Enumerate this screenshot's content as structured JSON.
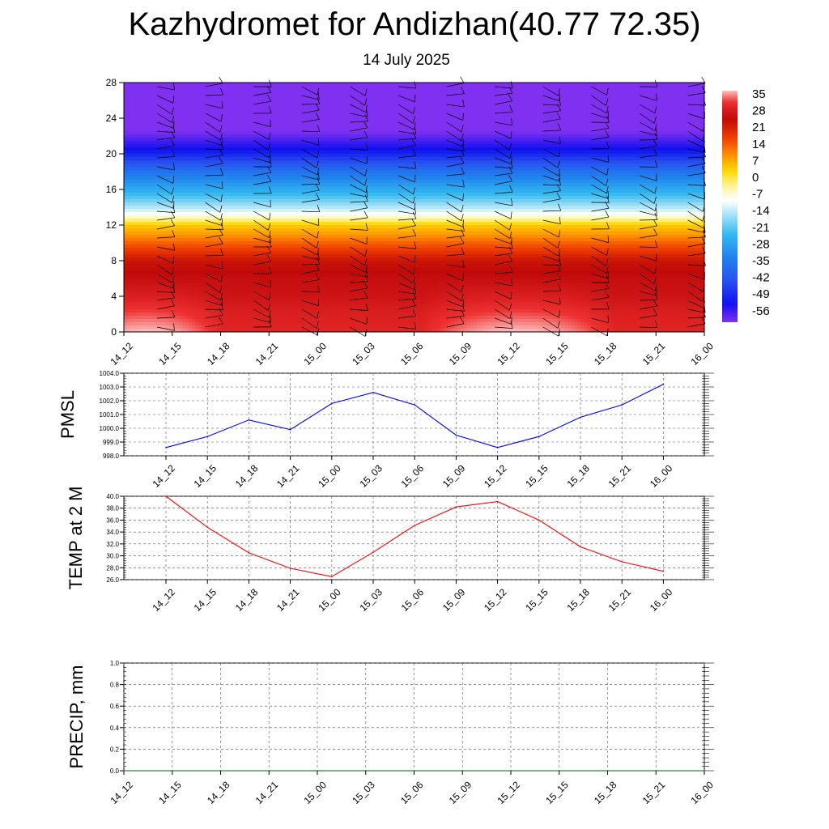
{
  "title": "Kazhydromet for Andizhan(40.77 72.35)",
  "subtitle": "14 July 2025",
  "colors": {
    "pmsl_line": "#0000ff",
    "temp_line": "#ff0000",
    "precip_line": "#006400"
  },
  "chart_data": [
    {
      "type": "heatmap",
      "name": "temperature-wind cross-section",
      "x_ticks": [
        "14_12",
        "14_15",
        "14_18",
        "14_21",
        "15_00",
        "15_03",
        "15_06",
        "15_09",
        "15_12",
        "15_15",
        "15_18",
        "15_21",
        "16_00"
      ],
      "y_ticks": [
        0,
        4,
        8,
        12,
        16,
        20,
        24,
        28
      ],
      "ylim": [
        0,
        28
      ],
      "colorbar": {
        "labels": [
          35,
          28,
          21,
          14,
          7,
          0,
          -7,
          -14,
          -21,
          -28,
          -35,
          -42,
          -49,
          -56
        ],
        "range": [
          -63,
          38
        ],
        "stops": [
          {
            "v": 38,
            "c": "#ffc0c0"
          },
          {
            "v": 33,
            "c": "#ee3030"
          },
          {
            "v": 26,
            "c": "#c00808"
          },
          {
            "v": 17,
            "c": "#f04000"
          },
          {
            "v": 10,
            "c": "#ff9000"
          },
          {
            "v": 3,
            "c": "#ffd800"
          },
          {
            "v": -4,
            "c": "#fff6a0"
          },
          {
            "v": -10,
            "c": "#ffffff"
          },
          {
            "v": -16,
            "c": "#a8e4f8"
          },
          {
            "v": -25,
            "c": "#30b8f0"
          },
          {
            "v": -35,
            "c": "#2080ee"
          },
          {
            "v": -45,
            "c": "#2850f0"
          },
          {
            "v": -55,
            "c": "#1010f0"
          },
          {
            "v": -63,
            "c": "#8030f0"
          }
        ]
      },
      "temp_by_height": [
        {
          "h": 0,
          "day": 38,
          "night": 31
        },
        {
          "h": 2,
          "day": 34,
          "night": 30
        },
        {
          "h": 4,
          "day": 30,
          "night": 28
        },
        {
          "h": 6,
          "day": 27,
          "night": 27
        },
        {
          "h": 8,
          "day": 24,
          "night": 24
        },
        {
          "h": 10,
          "day": 14,
          "night": 14
        },
        {
          "h": 12,
          "day": 4,
          "night": 4
        },
        {
          "h": 13.2,
          "day": -10,
          "night": -10
        },
        {
          "h": 15,
          "day": -22,
          "night": -22
        },
        {
          "h": 18,
          "day": -38,
          "night": -38
        },
        {
          "h": 20.5,
          "day": -55,
          "night": -55
        },
        {
          "h": 22.5,
          "day": -63,
          "night": -63
        },
        {
          "h": 28,
          "day": -63,
          "night": -63
        }
      ]
    },
    {
      "type": "line",
      "ylabel": "PMSL",
      "x": [
        "14_12",
        "14_15",
        "14_18",
        "14_21",
        "15_00",
        "15_03",
        "15_06",
        "15_09",
        "15_12",
        "15_15",
        "15_18",
        "15_21",
        "16_00"
      ],
      "values": [
        998.6,
        999.4,
        1000.6,
        999.9,
        1001.8,
        1002.6,
        1001.7,
        999.5,
        998.6,
        999.4,
        1000.8,
        1001.7,
        1003.2
      ],
      "ylim": [
        998.0,
        1004.0
      ],
      "y_ticks": [
        "998.0",
        "999.0",
        "1000.0",
        "1001.0",
        "1002.0",
        "1003.0",
        "1004.0"
      ],
      "grid": true
    },
    {
      "type": "line",
      "ylabel": "TEMP at 2 M",
      "x": [
        "14_12",
        "14_15",
        "14_18",
        "14_21",
        "15_00",
        "15_03",
        "15_06",
        "15_09",
        "15_12",
        "15_15",
        "15_18",
        "15_21",
        "16_00"
      ],
      "values": [
        40.0,
        34.8,
        30.5,
        27.9,
        26.5,
        30.6,
        35.1,
        38.2,
        39.1,
        36.0,
        31.5,
        29.0,
        27.4
      ],
      "ylim": [
        26.0,
        40.0
      ],
      "y_ticks": [
        "26.0",
        "28.0",
        "30.0",
        "32.0",
        "34.0",
        "36.0",
        "38.0",
        "40.0"
      ],
      "grid": true
    },
    {
      "type": "line",
      "ylabel": "PRECIP, mm",
      "x": [
        "14_12",
        "14_15",
        "14_18",
        "14_21",
        "15_00",
        "15_03",
        "15_06",
        "15_09",
        "15_12",
        "15_15",
        "15_18",
        "15_21",
        "16_00"
      ],
      "values": [
        0,
        0,
        0,
        0,
        0,
        0,
        0,
        0,
        0,
        0,
        0,
        0,
        0
      ],
      "ylim": [
        0.0,
        1.0
      ],
      "y_ticks": [
        "0.0",
        "0.2",
        "0.4",
        "0.6",
        "0.8",
        "1.0"
      ],
      "grid": true
    }
  ]
}
